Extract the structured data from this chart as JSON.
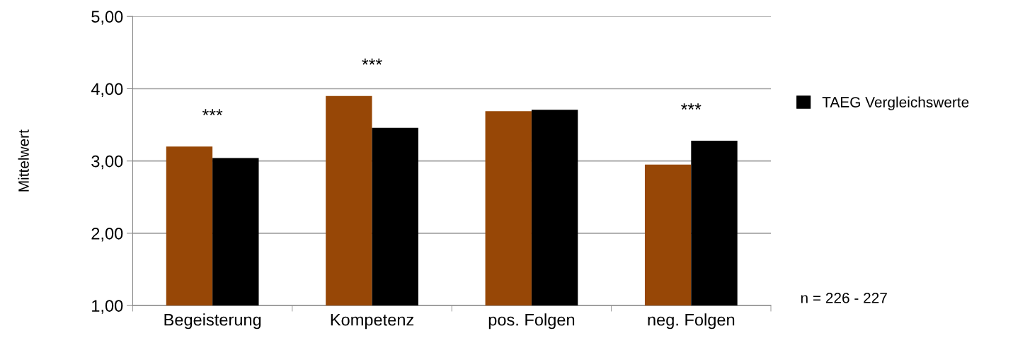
{
  "chart_data": {
    "type": "bar",
    "ylabel": "Mittelwert",
    "categories": [
      "Begeisterung",
      "Kompetenz",
      "pos. Folgen",
      "neg. Folgen"
    ],
    "series": [
      {
        "color": "#974706",
        "values": [
          3.2,
          3.9,
          3.69,
          2.95
        ]
      },
      {
        "name": "TAEG Vergleichswerte",
        "color": "#000000",
        "values": [
          3.04,
          3.46,
          3.71,
          3.28
        ]
      }
    ],
    "ylim": [
      1,
      5
    ],
    "yticks": [
      {
        "value": 1,
        "label": "1,00"
      },
      {
        "value": 2,
        "label": "2,00"
      },
      {
        "value": 3,
        "label": "3,00"
      },
      {
        "value": 4,
        "label": "4,00"
      },
      {
        "value": 5,
        "label": "5,00"
      }
    ],
    "grid": "y",
    "legend": "right",
    "annotations": [
      {
        "text": "***",
        "x": "Begeisterung",
        "y": 3.2
      },
      {
        "text": "***",
        "x": "Kompetenz",
        "y": 3.9
      },
      {
        "text": "***",
        "x": "neg. Folgen",
        "y": 3.28
      },
      "n = 226 - 227"
    ]
  }
}
